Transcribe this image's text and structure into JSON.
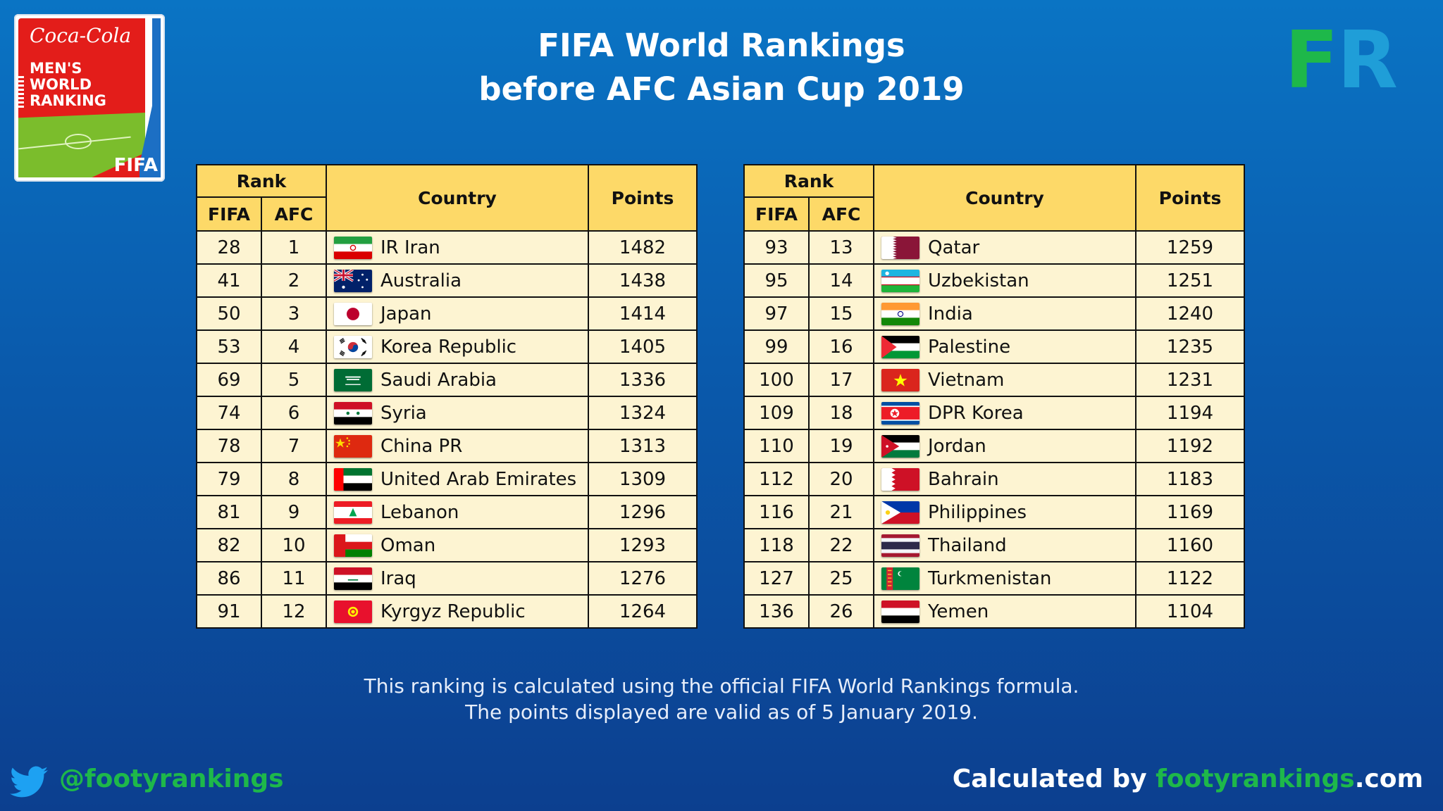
{
  "logo": {
    "brand": "Coca-Cola",
    "lines": [
      "MEN'S",
      "WORLD",
      "RANKING"
    ],
    "fifa": "FIFA"
  },
  "title": {
    "line1": "FIFA World Rankings",
    "line2": "before AFC Asian Cup 2019"
  },
  "brand_mark": {
    "f": "F",
    "r": "R",
    "colors": {
      "f": "#1eb84a",
      "r": "#1f9ed8"
    }
  },
  "headers": {
    "rank": "Rank",
    "fifa": "FIFA",
    "afc": "AFC",
    "country": "Country",
    "points": "Points"
  },
  "left_table": [
    {
      "fifa": "28",
      "afc": "1",
      "country": "IR Iran",
      "points": "1482",
      "flag": "iran"
    },
    {
      "fifa": "41",
      "afc": "2",
      "country": "Australia",
      "points": "1438",
      "flag": "australia"
    },
    {
      "fifa": "50",
      "afc": "3",
      "country": "Japan",
      "points": "1414",
      "flag": "japan"
    },
    {
      "fifa": "53",
      "afc": "4",
      "country": "Korea Republic",
      "points": "1405",
      "flag": "korea"
    },
    {
      "fifa": "69",
      "afc": "5",
      "country": "Saudi Arabia",
      "points": "1336",
      "flag": "saudi"
    },
    {
      "fifa": "74",
      "afc": "6",
      "country": "Syria",
      "points": "1324",
      "flag": "syria"
    },
    {
      "fifa": "78",
      "afc": "7",
      "country": "China PR",
      "points": "1313",
      "flag": "china"
    },
    {
      "fifa": "79",
      "afc": "8",
      "country": "United Arab Emirates",
      "points": "1309",
      "flag": "uae"
    },
    {
      "fifa": "81",
      "afc": "9",
      "country": "Lebanon",
      "points": "1296",
      "flag": "lebanon"
    },
    {
      "fifa": "82",
      "afc": "10",
      "country": "Oman",
      "points": "1293",
      "flag": "oman"
    },
    {
      "fifa": "86",
      "afc": "11",
      "country": "Iraq",
      "points": "1276",
      "flag": "iraq"
    },
    {
      "fifa": "91",
      "afc": "12",
      "country": "Kyrgyz Republic",
      "points": "1264",
      "flag": "kyrgyz"
    }
  ],
  "right_table": [
    {
      "fifa": "93",
      "afc": "13",
      "country": "Qatar",
      "points": "1259",
      "flag": "qatar"
    },
    {
      "fifa": "95",
      "afc": "14",
      "country": "Uzbekistan",
      "points": "1251",
      "flag": "uzbekistan"
    },
    {
      "fifa": "97",
      "afc": "15",
      "country": "India",
      "points": "1240",
      "flag": "india"
    },
    {
      "fifa": "99",
      "afc": "16",
      "country": "Palestine",
      "points": "1235",
      "flag": "palestine"
    },
    {
      "fifa": "100",
      "afc": "17",
      "country": "Vietnam",
      "points": "1231",
      "flag": "vietnam"
    },
    {
      "fifa": "109",
      "afc": "18",
      "country": "DPR Korea",
      "points": "1194",
      "flag": "dprk"
    },
    {
      "fifa": "110",
      "afc": "19",
      "country": "Jordan",
      "points": "1192",
      "flag": "jordan"
    },
    {
      "fifa": "112",
      "afc": "20",
      "country": "Bahrain",
      "points": "1183",
      "flag": "bahrain"
    },
    {
      "fifa": "116",
      "afc": "21",
      "country": "Philippines",
      "points": "1169",
      "flag": "philippines"
    },
    {
      "fifa": "118",
      "afc": "22",
      "country": "Thailand",
      "points": "1160",
      "flag": "thailand"
    },
    {
      "fifa": "127",
      "afc": "25",
      "country": "Turkmenistan",
      "points": "1122",
      "flag": "turkmenistan"
    },
    {
      "fifa": "136",
      "afc": "26",
      "country": "Yemen",
      "points": "1104",
      "flag": "yemen"
    }
  ],
  "footnote": {
    "line1": "This ranking is calculated using the official FIFA World Rankings formula.",
    "line2": "The points displayed are valid as of 5 January 2019."
  },
  "footer": {
    "handle": "@footyrankings",
    "calc_prefix": "Calculated by ",
    "calc_site": "footyrankings",
    "calc_suffix": ".com"
  },
  "colors": {
    "header_bg": "#fdd968",
    "cell_bg": "#fdf4d2",
    "accent_green": "#1eb84a",
    "bg_top": "#0a74c4",
    "bg_bottom": "#0c3f8f"
  }
}
